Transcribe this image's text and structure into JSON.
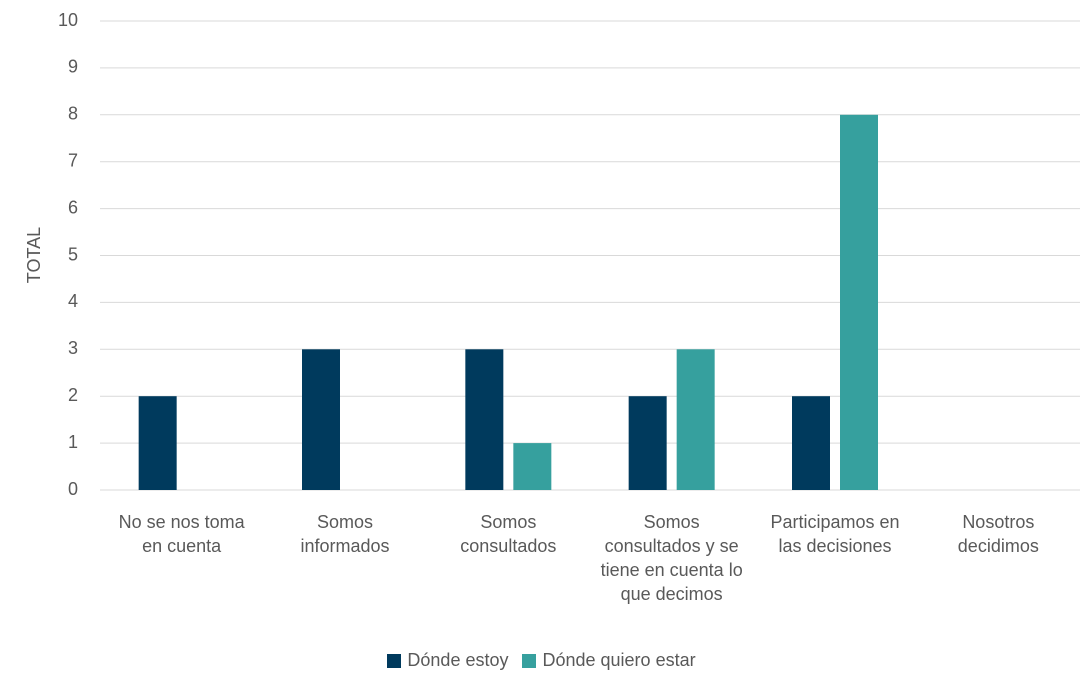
{
  "chart_data": {
    "type": "bar",
    "categories": [
      "No se nos toma en cuenta",
      "Somos informados",
      "Somos consultados",
      "Somos consultados y se tiene en cuenta lo que decimos",
      "Participamos en las decisiones",
      "Nosotros decidimos"
    ],
    "series": [
      {
        "name": "Dónde estoy",
        "color": "#003a5d",
        "values": [
          2,
          3,
          3,
          2,
          2,
          0
        ]
      },
      {
        "name": "Dónde quiero estar",
        "color": "#36a09e",
        "values": [
          0,
          0,
          1,
          3,
          8,
          0
        ]
      }
    ],
    "y_label": "TOTAL",
    "ylim": [
      0,
      10
    ],
    "yticks": [
      0,
      1,
      2,
      3,
      4,
      5,
      6,
      7,
      8,
      9,
      10
    ],
    "grid": true,
    "legend": "bottom"
  }
}
